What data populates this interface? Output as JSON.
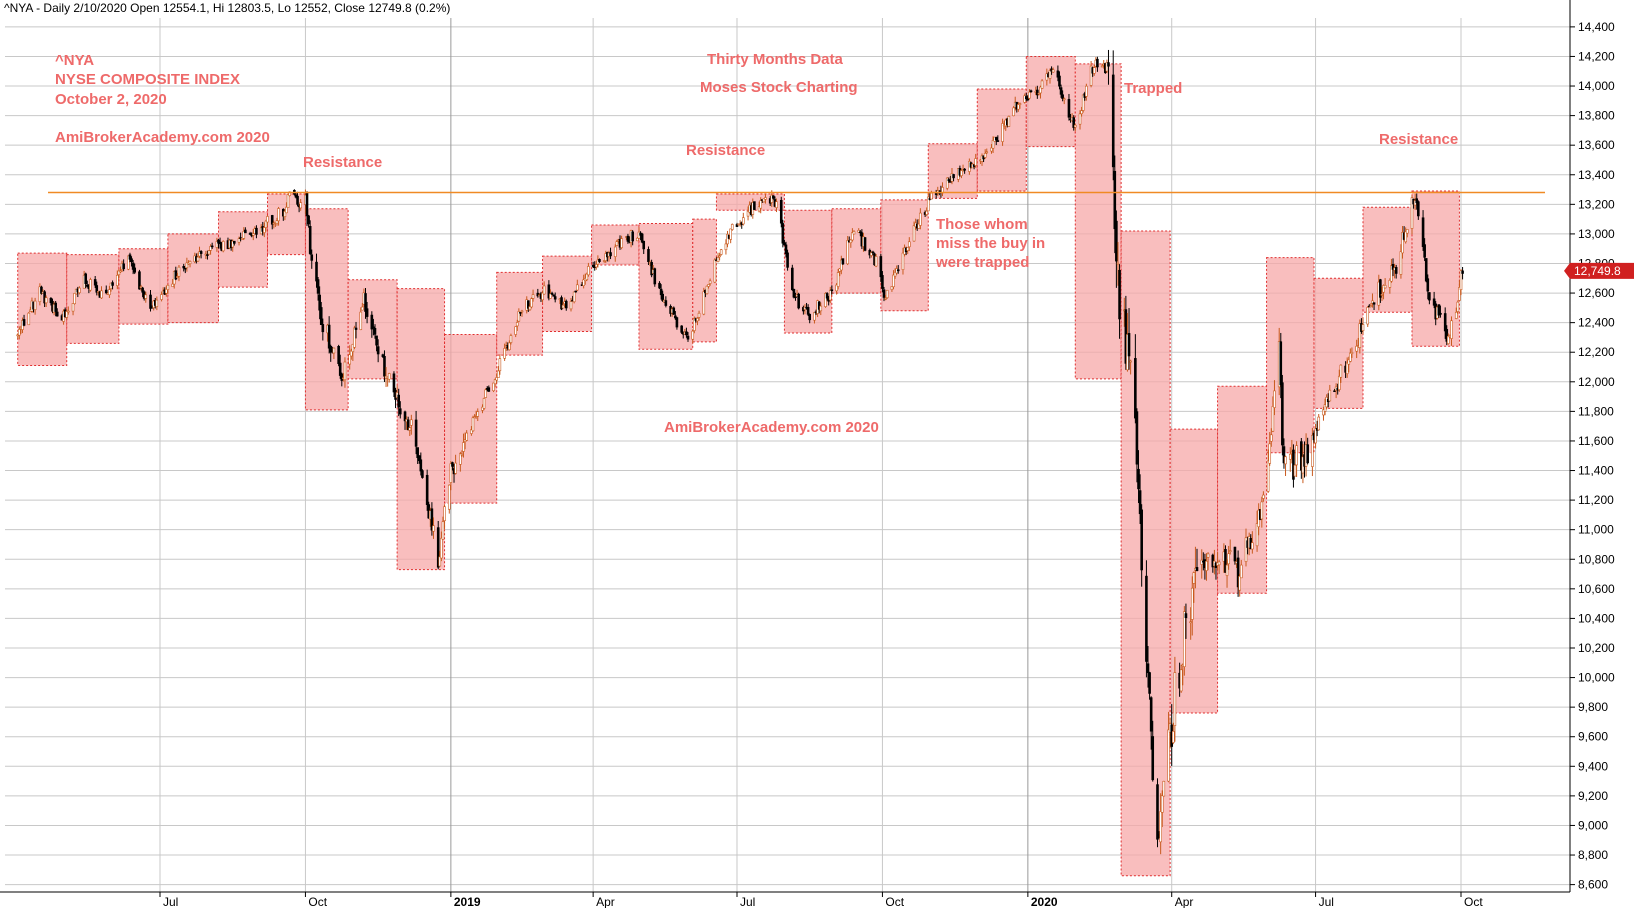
{
  "window": {
    "title": "^NYA - Daily 2/10/2020 Open 12554.1, Hi 12803.5, Lo 12552, Close 12749.8 (0.2%)"
  },
  "annotations": {
    "ticker": "^NYA",
    "index_name": "NYSE COMPOSITE INDEX",
    "date": "October 2, 2020",
    "site_top": "AmiBrokerAcademy.com  2020",
    "site_center": "AmiBrokerAcademy.com  2020",
    "thirty_months": "Thirty Months Data",
    "moses": "Moses Stock Charting",
    "trapped": "Trapped",
    "resistance_1": "Resistance",
    "resistance_2": "Resistance",
    "resistance_3": "Resistance",
    "trapped_note_1": "Those whom",
    "trapped_note_2": "miss the buy in",
    "trapped_note_3": "were trapped"
  },
  "last_price_label": "12,749.8",
  "colors": {
    "box_fill": "#f7a8a8",
    "box_stroke": "#e03030",
    "resistance_line": "#f08a24",
    "annotation": "#ee6a6a",
    "grid": "#c8c8c8",
    "candle_down": "#000000",
    "candle_up": "#c85a1e",
    "price_badge": "#d02020"
  },
  "chart_data": {
    "type": "candlestick",
    "title": "^NYA - Daily 2/10/2020 Open 12554.1, Hi 12803.5, Lo 12552, Close 12749.8 (0.2%)",
    "symbol": "^NYA",
    "ylim": [
      8550,
      14460
    ],
    "y_ticks": [
      8600,
      8800,
      9000,
      9200,
      9400,
      9600,
      9800,
      10000,
      10200,
      10400,
      10600,
      10800,
      11000,
      11200,
      11400,
      11600,
      11800,
      12000,
      12200,
      12400,
      12600,
      12800,
      13000,
      13200,
      13400,
      13600,
      13800,
      14000,
      14200,
      14400
    ],
    "x_ticks": [
      {
        "label": "Jul",
        "date": "2018-07-01",
        "bold": false
      },
      {
        "label": "Oct",
        "date": "2018-10-01",
        "bold": false
      },
      {
        "label": "2019",
        "date": "2019-01-01",
        "bold": true
      },
      {
        "label": "Apr",
        "date": "2019-04-01",
        "bold": false
      },
      {
        "label": "Jul",
        "date": "2019-07-01",
        "bold": false
      },
      {
        "label": "Oct",
        "date": "2019-10-01",
        "bold": false
      },
      {
        "label": "2020",
        "date": "2020-01-01",
        "bold": true
      },
      {
        "label": "Apr",
        "date": "2020-04-01",
        "bold": false
      },
      {
        "label": "Jul",
        "date": "2020-07-01",
        "bold": false
      },
      {
        "label": "Oct",
        "date": "2020-10-01",
        "bold": false
      }
    ],
    "grid": true,
    "resistance_level": 13280,
    "last_close": 12749.8,
    "path": [
      [
        "2018-04-02",
        12330
      ],
      [
        "2018-04-16",
        12610
      ],
      [
        "2018-04-30",
        12430
      ],
      [
        "2018-05-14",
        12690
      ],
      [
        "2018-05-28",
        12580
      ],
      [
        "2018-06-11",
        12840
      ],
      [
        "2018-06-25",
        12480
      ],
      [
        "2018-07-09",
        12700
      ],
      [
        "2018-07-23",
        12850
      ],
      [
        "2018-08-06",
        12920
      ],
      [
        "2018-08-20",
        12960
      ],
      [
        "2018-09-03",
        13050
      ],
      [
        "2018-09-17",
        13160
      ],
      [
        "2018-09-21",
        13260
      ],
      [
        "2018-10-01",
        13180
      ],
      [
        "2018-10-10",
        12450
      ],
      [
        "2018-10-24",
        12050
      ],
      [
        "2018-11-07",
        12570
      ],
      [
        "2018-11-21",
        12020
      ],
      [
        "2018-12-07",
        11680
      ],
      [
        "2018-12-17",
        11200
      ],
      [
        "2018-12-24",
        10780
      ],
      [
        "2018-12-31",
        11360
      ],
      [
        "2019-01-14",
        11700
      ],
      [
        "2019-01-31",
        12090
      ],
      [
        "2019-02-15",
        12500
      ],
      [
        "2019-03-01",
        12610
      ],
      [
        "2019-03-15",
        12500
      ],
      [
        "2019-03-29",
        12740
      ],
      [
        "2019-04-12",
        12890
      ],
      [
        "2019-04-30",
        13020
      ],
      [
        "2019-05-13",
        12600
      ],
      [
        "2019-05-31",
        12280
      ],
      [
        "2019-06-14",
        12720
      ],
      [
        "2019-06-28",
        13050
      ],
      [
        "2019-07-12",
        13180
      ],
      [
        "2019-07-26",
        13230
      ],
      [
        "2019-08-05",
        12600
      ],
      [
        "2019-08-15",
        12450
      ],
      [
        "2019-08-30",
        12600
      ],
      [
        "2019-09-13",
        13040
      ],
      [
        "2019-09-27",
        12810
      ],
      [
        "2019-10-03",
        12560
      ],
      [
        "2019-10-18",
        12960
      ],
      [
        "2019-11-01",
        13260
      ],
      [
        "2019-11-15",
        13400
      ],
      [
        "2019-11-29",
        13480
      ],
      [
        "2019-12-13",
        13650
      ],
      [
        "2019-12-27",
        13920
      ],
      [
        "2020-01-10",
        14000
      ],
      [
        "2020-01-17",
        14140
      ],
      [
        "2020-01-31",
        13700
      ],
      [
        "2020-02-12",
        14170
      ],
      [
        "2020-02-20",
        14100
      ],
      [
        "2020-02-28",
        12380
      ],
      [
        "2020-03-06",
        12250
      ],
      [
        "2020-03-12",
        10950
      ],
      [
        "2020-03-23",
        8777
      ],
      [
        "2020-04-03",
        9900
      ],
      [
        "2020-04-17",
        10800
      ],
      [
        "2020-04-30",
        10850
      ],
      [
        "2020-05-13",
        10700
      ],
      [
        "2020-05-29",
        11170
      ],
      [
        "2020-06-08",
        12260
      ],
      [
        "2020-06-11",
        11380
      ],
      [
        "2020-06-26",
        11550
      ],
      [
        "2020-07-10",
        11900
      ],
      [
        "2020-07-24",
        12200
      ],
      [
        "2020-08-07",
        12570
      ],
      [
        "2020-08-21",
        12800
      ],
      [
        "2020-09-02",
        13250
      ],
      [
        "2020-09-11",
        12600
      ],
      [
        "2020-09-23",
        12270
      ],
      [
        "2020-10-02",
        12750
      ]
    ],
    "boxes": [
      {
        "start": "2018-04-02",
        "end": "2018-05-03",
        "low": 12110,
        "high": 12870
      },
      {
        "start": "2018-05-03",
        "end": "2018-06-05",
        "low": 12260,
        "high": 12860
      },
      {
        "start": "2018-06-05",
        "end": "2018-07-06",
        "low": 12390,
        "high": 12900
      },
      {
        "start": "2018-07-06",
        "end": "2018-08-07",
        "low": 12400,
        "high": 13000
      },
      {
        "start": "2018-08-07",
        "end": "2018-09-07",
        "low": 12640,
        "high": 13150
      },
      {
        "start": "2018-09-07",
        "end": "2018-10-01",
        "low": 12860,
        "high": 13270
      },
      {
        "start": "2018-10-01",
        "end": "2018-10-28",
        "low": 11810,
        "high": 13170
      },
      {
        "start": "2018-10-28",
        "end": "2018-11-28",
        "low": 12020,
        "high": 12690
      },
      {
        "start": "2018-11-28",
        "end": "2018-12-28",
        "low": 10730,
        "high": 12630
      },
      {
        "start": "2018-12-28",
        "end": "2019-01-30",
        "low": 11180,
        "high": 12320
      },
      {
        "start": "2019-01-30",
        "end": "2019-02-28",
        "low": 12180,
        "high": 12740
      },
      {
        "start": "2019-02-28",
        "end": "2019-03-31",
        "low": 12340,
        "high": 12850
      },
      {
        "start": "2019-03-31",
        "end": "2019-04-30",
        "low": 12790,
        "high": 13060
      },
      {
        "start": "2019-04-30",
        "end": "2019-06-03",
        "low": 12220,
        "high": 13070
      },
      {
        "start": "2019-06-03",
        "end": "2019-06-18",
        "low": 12270,
        "high": 13100
      },
      {
        "start": "2019-06-18",
        "end": "2019-07-31",
        "low": 13160,
        "high": 13270
      },
      {
        "start": "2019-07-31",
        "end": "2019-08-30",
        "low": 12330,
        "high": 13160
      },
      {
        "start": "2019-08-30",
        "end": "2019-09-30",
        "low": 12600,
        "high": 13170
      },
      {
        "start": "2019-09-30",
        "end": "2019-10-30",
        "low": 12480,
        "high": 13230
      },
      {
        "start": "2019-10-30",
        "end": "2019-11-30",
        "low": 13240,
        "high": 13610
      },
      {
        "start": "2019-11-30",
        "end": "2019-12-31",
        "low": 13290,
        "high": 13980
      },
      {
        "start": "2019-12-31",
        "end": "2020-01-31",
        "low": 13590,
        "high": 14200
      },
      {
        "start": "2020-01-31",
        "end": "2020-02-29",
        "low": 12020,
        "high": 14150
      },
      {
        "start": "2020-02-29",
        "end": "2020-03-31",
        "low": 8660,
        "high": 13020
      },
      {
        "start": "2020-03-31",
        "end": "2020-04-30",
        "low": 9760,
        "high": 11680
      },
      {
        "start": "2020-04-30",
        "end": "2020-05-31",
        "low": 10570,
        "high": 11970
      },
      {
        "start": "2020-05-31",
        "end": "2020-06-30",
        "low": 11520,
        "high": 12840
      },
      {
        "start": "2020-06-30",
        "end": "2020-07-31",
        "low": 11820,
        "high": 12700
      },
      {
        "start": "2020-07-31",
        "end": "2020-08-31",
        "low": 12470,
        "high": 13180
      },
      {
        "start": "2020-08-31",
        "end": "2020-09-30",
        "low": 12240,
        "high": 13290
      }
    ]
  }
}
